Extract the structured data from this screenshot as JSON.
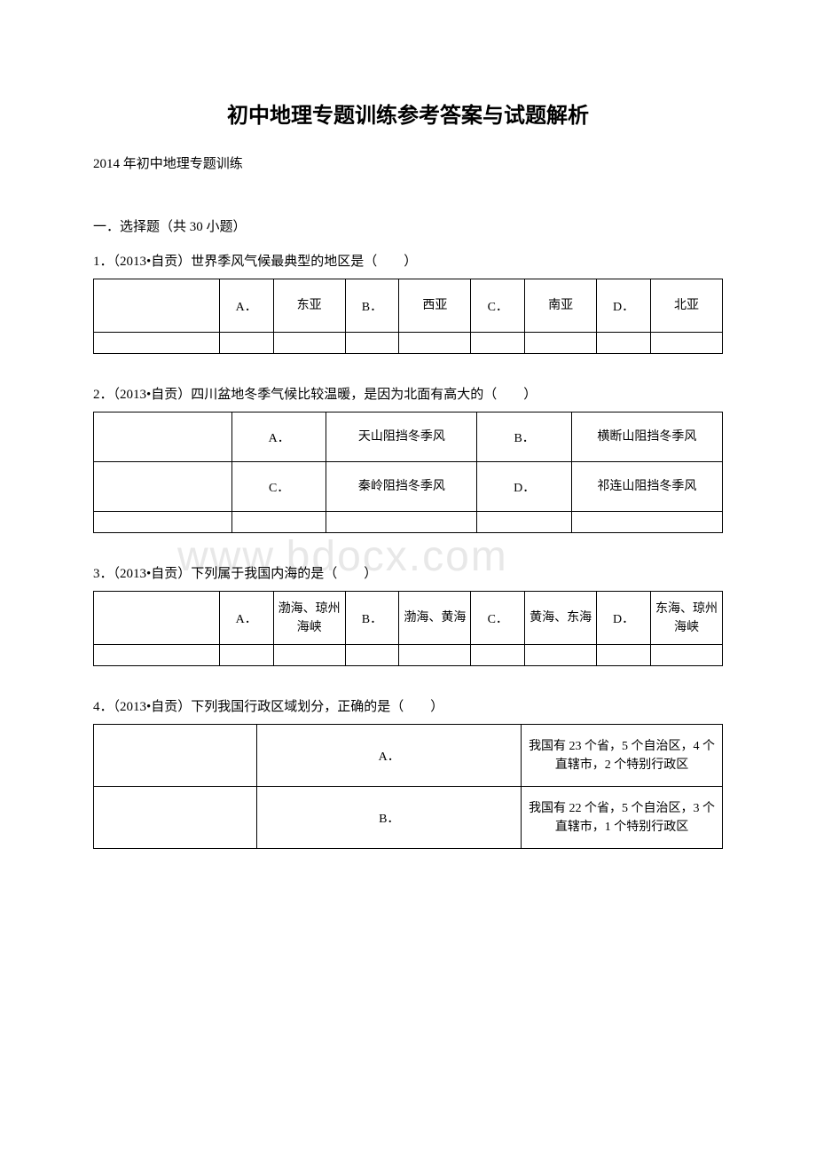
{
  "watermark": "www.bdocx.com",
  "title": "初中地理专题训练参考答案与试题解析",
  "subtitle": "2014 年初中地理专题训练",
  "sectionHeader": "一．选择题（共 30 小题）",
  "q1": {
    "text": "1．（2013•自贡）世界季风气候最典型的地区是（　　）",
    "options": {
      "A": {
        "letter": "A．",
        "text": "东亚"
      },
      "B": {
        "letter": "B．",
        "text": "西亚"
      },
      "C": {
        "letter": "C．",
        "text": "南亚"
      },
      "D": {
        "letter": "D．",
        "text": "北亚"
      }
    }
  },
  "q2": {
    "text": "2．（2013•自贡）四川盆地冬季气候比较温暖，是因为北面有高大的（　　）",
    "options": {
      "A": {
        "letter": "A．",
        "text": "天山阻挡冬季风"
      },
      "B": {
        "letter": "B．",
        "text": "横断山阻挡冬季风"
      },
      "C": {
        "letter": "C．",
        "text": "秦岭阻挡冬季风"
      },
      "D": {
        "letter": "D．",
        "text": "祁连山阻挡冬季风"
      }
    }
  },
  "q3": {
    "text": "3．（2013•自贡）下列属于我国内海的是（　　）",
    "options": {
      "A": {
        "letter": "A．",
        "text": "渤海、琼州海峡"
      },
      "B": {
        "letter": "B．",
        "text": "渤海、黄海"
      },
      "C": {
        "letter": "C．",
        "text": "黄海、东海"
      },
      "D": {
        "letter": "D．",
        "text": "东海、琼州海峡"
      }
    }
  },
  "q4": {
    "text": "4．（2013•自贡）下列我国行政区域划分，正确的是（　　）",
    "options": {
      "A": {
        "letter": "A．",
        "text": "我国有 23 个省，5 个自治区，4 个直辖市，2 个特别行政区"
      },
      "B": {
        "letter": "B．",
        "text": "我国有 22 个省，5 个自治区，3 个直辖市，1 个特别行政区"
      }
    }
  },
  "colors": {
    "background": "#ffffff",
    "text": "#000000",
    "border": "#000000",
    "watermark": "#e8e8e8"
  },
  "fontsize": {
    "title": 24,
    "body": 15,
    "table": 14
  }
}
